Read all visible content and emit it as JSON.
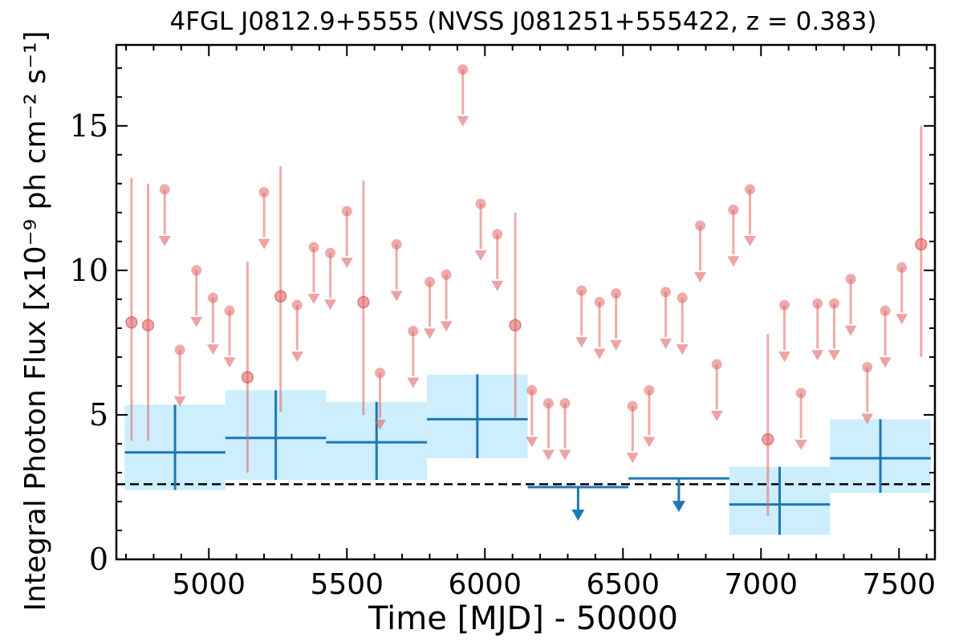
{
  "chart_data": {
    "type": "scatter",
    "title": "4FGL J0812.9+5555 (NVSS J081251+555422, z = 0.383)",
    "xlabel": "Time [MJD] - 50000",
    "ylabel": "Integral Photon Flux [x10⁻⁹ ph cm⁻² s⁻¹]",
    "xlim": [
      4665,
      7630
    ],
    "ylim": [
      0,
      17.8
    ],
    "x_ticks": [
      5000,
      5500,
      6000,
      6500,
      7000,
      7500
    ],
    "y_ticks": [
      0,
      5,
      10,
      15
    ],
    "grid": false,
    "reference_level": 2.6,
    "colors": {
      "monthly": "#e06666",
      "yearly": "#1f77b4",
      "yearly_band": "#cdeefc",
      "reference_line": "#000000"
    },
    "monthly_detections": [
      {
        "x": 4720,
        "y": 8.2,
        "yerr_low": 4.1,
        "yerr_high": 13.2
      },
      {
        "x": 4780,
        "y": 8.1,
        "yerr_low": 4.1,
        "yerr_high": 13.0
      },
      {
        "x": 5140,
        "y": 6.3,
        "yerr_low": 3.0,
        "yerr_high": 10.3
      },
      {
        "x": 5260,
        "y": 9.1,
        "yerr_low": 5.1,
        "yerr_high": 13.6
      },
      {
        "x": 5560,
        "y": 8.9,
        "yerr_low": 5.0,
        "yerr_high": 13.1
      },
      {
        "x": 6110,
        "y": 8.1,
        "yerr_low": 4.9,
        "yerr_high": 12.0
      },
      {
        "x": 7025,
        "y": 4.15,
        "yerr_low": 1.5,
        "yerr_high": 7.8
      },
      {
        "x": 7580,
        "y": 10.9,
        "yerr_low": 7.0,
        "yerr_high": 15.0
      }
    ],
    "monthly_upper_limits": [
      {
        "x": 4840,
        "y": 12.8
      },
      {
        "x": 4895,
        "y": 7.25
      },
      {
        "x": 4955,
        "y": 10.0
      },
      {
        "x": 5015,
        "y": 9.05
      },
      {
        "x": 5075,
        "y": 8.6
      },
      {
        "x": 5200,
        "y": 12.7
      },
      {
        "x": 5320,
        "y": 8.8
      },
      {
        "x": 5380,
        "y": 10.8
      },
      {
        "x": 5440,
        "y": 10.6
      },
      {
        "x": 5500,
        "y": 12.05
      },
      {
        "x": 5620,
        "y": 6.45
      },
      {
        "x": 5680,
        "y": 10.9
      },
      {
        "x": 5740,
        "y": 7.9
      },
      {
        "x": 5800,
        "y": 9.6
      },
      {
        "x": 5860,
        "y": 9.85
      },
      {
        "x": 5920,
        "y": 16.95
      },
      {
        "x": 5985,
        "y": 12.3
      },
      {
        "x": 6045,
        "y": 11.25
      },
      {
        "x": 6170,
        "y": 5.85
      },
      {
        "x": 6230,
        "y": 5.4
      },
      {
        "x": 6290,
        "y": 5.4
      },
      {
        "x": 6350,
        "y": 9.3
      },
      {
        "x": 6415,
        "y": 8.9
      },
      {
        "x": 6475,
        "y": 9.2
      },
      {
        "x": 6535,
        "y": 5.3
      },
      {
        "x": 6595,
        "y": 5.85
      },
      {
        "x": 6655,
        "y": 9.25
      },
      {
        "x": 6715,
        "y": 9.05
      },
      {
        "x": 6780,
        "y": 11.55
      },
      {
        "x": 6840,
        "y": 6.75
      },
      {
        "x": 6900,
        "y": 12.1
      },
      {
        "x": 6960,
        "y": 12.8
      },
      {
        "x": 7085,
        "y": 8.8
      },
      {
        "x": 7145,
        "y": 5.75
      },
      {
        "x": 7205,
        "y": 8.85
      },
      {
        "x": 7265,
        "y": 8.85
      },
      {
        "x": 7325,
        "y": 9.7
      },
      {
        "x": 7385,
        "y": 6.65
      },
      {
        "x": 7450,
        "y": 8.6
      },
      {
        "x": 7510,
        "y": 10.1
      }
    ],
    "yearly_detections": [
      {
        "x_start": 4695,
        "x_end": 5060,
        "y": 3.7,
        "y_low": 2.4,
        "y_high": 5.35
      },
      {
        "x_start": 5060,
        "x_end": 5425,
        "y": 4.2,
        "y_low": 2.75,
        "y_high": 5.85
      },
      {
        "x_start": 5425,
        "x_end": 5790,
        "y": 4.05,
        "y_low": 2.75,
        "y_high": 5.45
      },
      {
        "x_start": 5790,
        "x_end": 6155,
        "y": 4.85,
        "y_low": 3.5,
        "y_high": 6.4
      },
      {
        "x_start": 6885,
        "x_end": 7250,
        "y": 1.9,
        "y_low": 0.85,
        "y_high": 3.2
      },
      {
        "x_start": 7250,
        "x_end": 7615,
        "y": 3.5,
        "y_low": 2.3,
        "y_high": 4.85
      }
    ],
    "yearly_upper_limits": [
      {
        "x_start": 6155,
        "x_end": 6520,
        "y": 2.5
      },
      {
        "x_start": 6520,
        "x_end": 6885,
        "y": 2.8
      }
    ]
  }
}
